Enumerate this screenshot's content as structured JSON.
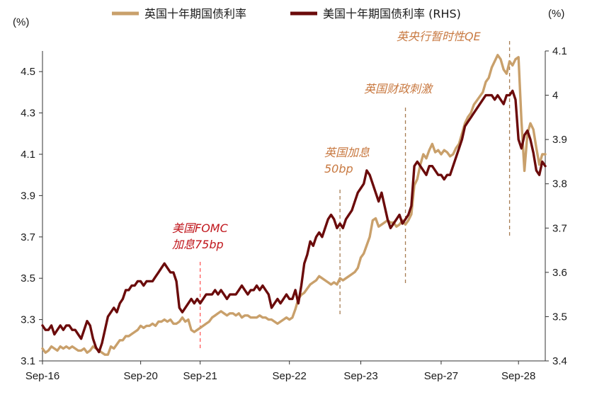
{
  "chart_data": {
    "type": "line",
    "left_unit": "(%)",
    "right_unit": "(%)",
    "left_ylim": [
      3.1,
      4.6
    ],
    "right_ylim": [
      3.4,
      4.1
    ],
    "left_ticks": [
      "3.1",
      "3.3",
      "3.5",
      "3.7",
      "3.9",
      "4.1",
      "4.3",
      "4.5"
    ],
    "right_ticks": [
      "3.4",
      "3.5",
      "3.6",
      "3.7",
      "3.8",
      "3.9",
      "4",
      "4.1"
    ],
    "x_ticks": [
      "Sep-16",
      "Sep-20",
      "Sep-21",
      "Sep-22",
      "Sep-23",
      "Sep-27",
      "Sep-28"
    ],
    "legend": [
      {
        "label": "英国十年期国债利率",
        "color": "#c9a06b"
      },
      {
        "label": "美国十年期国债利率 (RHS)",
        "color": "#6b0b0b"
      }
    ],
    "annotations": [
      {
        "text": [
          "美国FOMC",
          "加息75bp"
        ],
        "color": "#c0161c",
        "line_color": "#ff5a5a"
      },
      {
        "text": [
          "英国加息",
          "50bp"
        ],
        "color": "#c87941",
        "line_color": "#a67c52"
      },
      {
        "text": [
          "英国财政刺激"
        ],
        "color": "#c87941",
        "line_color": "#a67c52"
      },
      {
        "text": [
          "英央行暂时性QE"
        ],
        "color": "#c87941",
        "line_color": "#a67c52"
      }
    ],
    "series": [
      {
        "name": "英国十年期国债利率",
        "axis": "left",
        "color": "#c9a06b",
        "values": [
          3.16,
          3.14,
          3.15,
          3.17,
          3.16,
          3.15,
          3.17,
          3.16,
          3.17,
          3.16,
          3.17,
          3.16,
          3.15,
          3.15,
          3.16,
          3.14,
          3.15,
          3.17,
          3.16,
          3.15,
          3.14,
          3.13,
          3.13,
          3.17,
          3.16,
          3.18,
          3.2,
          3.2,
          3.22,
          3.22,
          3.23,
          3.24,
          3.25,
          3.27,
          3.26,
          3.27,
          3.27,
          3.28,
          3.27,
          3.29,
          3.29,
          3.3,
          3.29,
          3.3,
          3.28,
          3.28,
          3.29,
          3.31,
          3.29,
          3.3,
          3.25,
          3.24,
          3.25,
          3.26,
          3.27,
          3.28,
          3.29,
          3.31,
          3.32,
          3.33,
          3.34,
          3.33,
          3.32,
          3.33,
          3.33,
          3.32,
          3.33,
          3.31,
          3.32,
          3.32,
          3.31,
          3.31,
          3.31,
          3.32,
          3.31,
          3.31,
          3.3,
          3.3,
          3.29,
          3.28,
          3.29,
          3.3,
          3.31,
          3.3,
          3.31,
          3.35,
          3.4,
          3.42,
          3.43,
          3.45,
          3.47,
          3.48,
          3.49,
          3.51,
          3.5,
          3.49,
          3.48,
          3.47,
          3.48,
          3.47,
          3.5,
          3.49,
          3.5,
          3.51,
          3.52,
          3.53,
          3.55,
          3.6,
          3.62,
          3.66,
          3.7,
          3.78,
          3.79,
          3.75,
          3.76,
          3.77,
          3.78,
          3.77,
          3.77,
          3.75,
          3.76,
          3.78,
          3.76,
          3.78,
          3.81,
          3.95,
          3.98,
          4.05,
          4.1,
          4.08,
          4.12,
          4.15,
          4.11,
          4.12,
          4.1,
          4.12,
          4.11,
          4.09,
          4.1,
          4.13,
          4.15,
          4.2,
          4.25,
          4.28,
          4.3,
          4.34,
          4.36,
          4.38,
          4.4,
          4.45,
          4.47,
          4.52,
          4.55,
          4.58,
          4.56,
          4.51,
          4.49,
          4.55,
          4.53,
          4.56,
          4.57,
          4.26,
          4.02,
          4.2,
          4.25,
          4.22,
          4.13,
          4.05,
          4.1,
          4.1
        ]
      },
      {
        "name": "美国十年期国债利率 (RHS)",
        "axis": "right",
        "color": "#6b0b0b",
        "values": [
          3.48,
          3.47,
          3.47,
          3.48,
          3.46,
          3.47,
          3.48,
          3.47,
          3.48,
          3.48,
          3.47,
          3.47,
          3.46,
          3.45,
          3.47,
          3.49,
          3.48,
          3.45,
          3.43,
          3.42,
          3.44,
          3.47,
          3.5,
          3.51,
          3.52,
          3.51,
          3.53,
          3.54,
          3.56,
          3.56,
          3.57,
          3.57,
          3.58,
          3.58,
          3.57,
          3.58,
          3.58,
          3.58,
          3.59,
          3.6,
          3.61,
          3.62,
          3.61,
          3.6,
          3.6,
          3.58,
          3.52,
          3.51,
          3.52,
          3.53,
          3.54,
          3.53,
          3.54,
          3.53,
          3.54,
          3.55,
          3.55,
          3.55,
          3.56,
          3.55,
          3.56,
          3.55,
          3.54,
          3.55,
          3.55,
          3.55,
          3.56,
          3.57,
          3.56,
          3.55,
          3.56,
          3.56,
          3.57,
          3.56,
          3.57,
          3.56,
          3.55,
          3.52,
          3.53,
          3.54,
          3.53,
          3.54,
          3.55,
          3.54,
          3.54,
          3.56,
          3.53,
          3.57,
          3.62,
          3.64,
          3.67,
          3.66,
          3.68,
          3.69,
          3.68,
          3.7,
          3.72,
          3.73,
          3.72,
          3.7,
          3.71,
          3.7,
          3.72,
          3.73,
          3.74,
          3.76,
          3.78,
          3.79,
          3.8,
          3.83,
          3.82,
          3.8,
          3.78,
          3.76,
          3.78,
          3.75,
          3.72,
          3.7,
          3.71,
          3.72,
          3.73,
          3.71,
          3.72,
          3.73,
          3.75,
          3.84,
          3.85,
          3.84,
          3.83,
          3.82,
          3.84,
          3.84,
          3.83,
          3.82,
          3.82,
          3.81,
          3.82,
          3.82,
          3.84,
          3.86,
          3.88,
          3.9,
          3.93,
          3.94,
          3.95,
          3.96,
          3.97,
          3.98,
          3.99,
          4.0,
          4.0,
          4.0,
          3.99,
          4.0,
          3.99,
          3.98,
          4.0,
          4.0,
          4.01,
          3.99,
          3.9,
          3.88,
          3.91,
          3.92,
          3.9,
          3.87,
          3.83,
          3.82,
          3.85,
          3.84
        ]
      }
    ]
  }
}
